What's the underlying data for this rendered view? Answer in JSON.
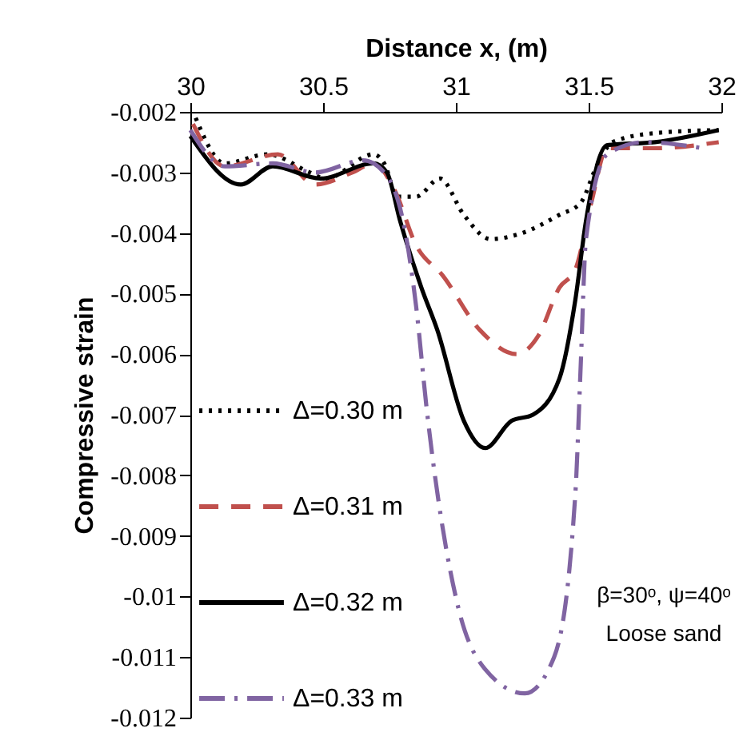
{
  "chart_data": {
    "type": "line",
    "xlabel": "Distance x, (m)",
    "ylabel": "Compressive strain",
    "xlim": [
      30,
      32
    ],
    "xticks": [
      30,
      30.5,
      31,
      31.5,
      32
    ],
    "ylim": [
      -0.012,
      -0.002
    ],
    "yticks": [
      -0.012,
      -0.011,
      -0.01,
      -0.009,
      -0.008,
      -0.007,
      -0.006,
      -0.005,
      -0.004,
      -0.003,
      -0.002
    ],
    "grid": false,
    "legend": "bottom left",
    "marker": "none",
    "annotations": [
      "β=30ᵒ, ψ=40ᵒ",
      "Loose sand"
    ],
    "series": [
      {
        "name": "Δ=0.30 m",
        "color": "#000000",
        "line_style": "dotted",
        "x": [
          30.02,
          30.13,
          30.29,
          30.45,
          30.51,
          30.69,
          30.73,
          30.78,
          30.85,
          30.94,
          31.03,
          31.13,
          31.25,
          31.39,
          31.47,
          31.53,
          31.59,
          31.75,
          31.99
        ],
        "values": [
          -0.0021,
          -0.00285,
          -0.0027,
          -0.003,
          -0.0031,
          -0.0027,
          -0.00285,
          -0.0034,
          -0.0034,
          -0.0031,
          -0.0037,
          -0.0041,
          -0.004,
          -0.0037,
          -0.0035,
          -0.0029,
          -0.0025,
          -0.00235,
          -0.0023
        ]
      },
      {
        "name": "Δ=0.31 m",
        "color": "#c0504d",
        "line_style": "dashed",
        "x": [
          30.01,
          30.13,
          30.33,
          30.47,
          30.61,
          30.69,
          30.77,
          30.85,
          30.95,
          31.09,
          31.23,
          31.31,
          31.39,
          31.45,
          31.51,
          31.57,
          31.75,
          31.99
        ],
        "values": [
          -0.0022,
          -0.0029,
          -0.0027,
          -0.0032,
          -0.003,
          -0.00285,
          -0.0033,
          -0.0042,
          -0.0047,
          -0.0056,
          -0.006,
          -0.0057,
          -0.0049,
          -0.0046,
          -0.0035,
          -0.0026,
          -0.0026,
          -0.0025
        ]
      },
      {
        "name": "Δ=0.32 m",
        "color": "#000000",
        "line_style": "solid",
        "x": [
          30,
          30.19,
          30.31,
          30.49,
          30.69,
          30.74,
          30.79,
          30.87,
          30.93,
          31.03,
          31.11,
          31.21,
          31.29,
          31.39,
          31.45,
          31.49,
          31.57,
          31.75,
          31.99
        ],
        "values": [
          -0.0024,
          -0.0032,
          -0.0029,
          -0.0031,
          -0.00285,
          -0.003,
          -0.0038,
          -0.0049,
          -0.0056,
          -0.0071,
          -0.00755,
          -0.0071,
          -0.007,
          -0.0064,
          -0.0051,
          -0.0038,
          -0.00255,
          -0.0025,
          -0.0023
        ]
      },
      {
        "name": "Δ=0.33 m",
        "color": "#8064a2",
        "line_style": "dashdot",
        "x": [
          30,
          30.13,
          30.31,
          30.47,
          30.65,
          30.73,
          30.81,
          30.85,
          30.89,
          31.01,
          31.11,
          31.26,
          31.37,
          31.45,
          31.47,
          31.49,
          31.57,
          31.71,
          31.93
        ],
        "values": [
          -0.0023,
          -0.0029,
          -0.00285,
          -0.003,
          -0.0028,
          -0.003,
          -0.004,
          -0.0052,
          -0.0069,
          -0.0102,
          -0.0112,
          -0.0116,
          -0.011,
          -0.0083,
          -0.0062,
          -0.0041,
          -0.0027,
          -0.0025,
          -0.0026
        ]
      }
    ]
  }
}
